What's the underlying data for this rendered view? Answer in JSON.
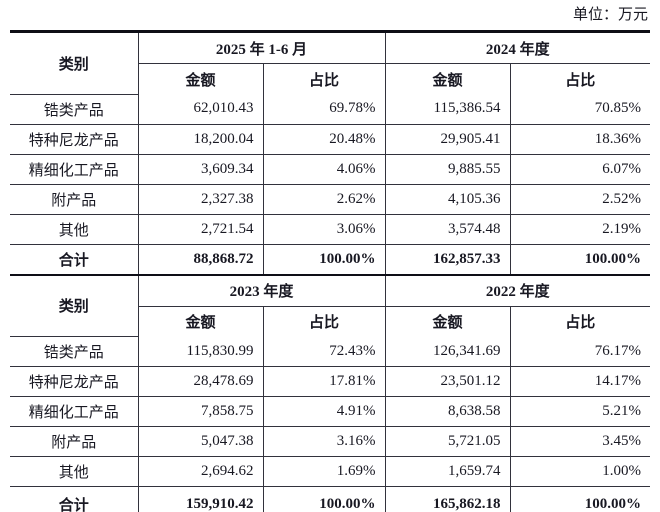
{
  "unit_label": "单位：万元",
  "colors": {
    "text": "#181822",
    "thick_border": "#0e0e16",
    "thin_border": "#32323c",
    "background": "#ffffff"
  },
  "tables": [
    {
      "col_header": "类别",
      "period_headers": [
        "2025 年 1-6 月",
        "2024 年度"
      ],
      "sub_headers": [
        "金额",
        "占比",
        "金额",
        "占比"
      ],
      "rows": [
        {
          "label": "锆类产品",
          "values": [
            "62,010.43",
            "69.78%",
            "115,386.54",
            "70.85%"
          ],
          "bold": false
        },
        {
          "label": "特种尼龙产品",
          "values": [
            "18,200.04",
            "20.48%",
            "29,905.41",
            "18.36%"
          ],
          "bold": false
        },
        {
          "label": "精细化工产品",
          "values": [
            "3,609.34",
            "4.06%",
            "9,885.55",
            "6.07%"
          ],
          "bold": false
        },
        {
          "label": "附产品",
          "values": [
            "2,327.38",
            "2.62%",
            "4,105.36",
            "2.52%"
          ],
          "bold": false
        },
        {
          "label": "其他",
          "values": [
            "2,721.54",
            "3.06%",
            "3,574.48",
            "2.19%"
          ],
          "bold": false
        },
        {
          "label": "合计",
          "values": [
            "88,868.72",
            "100.00%",
            "162,857.33",
            "100.00%"
          ],
          "bold": true
        }
      ]
    },
    {
      "col_header": "类别",
      "period_headers": [
        "2023 年度",
        "2022 年度"
      ],
      "sub_headers": [
        "金额",
        "占比",
        "金额",
        "占比"
      ],
      "rows": [
        {
          "label": "锆类产品",
          "values": [
            "115,830.99",
            "72.43%",
            "126,341.69",
            "76.17%"
          ],
          "bold": false
        },
        {
          "label": "特种尼龙产品",
          "values": [
            "28,478.69",
            "17.81%",
            "23,501.12",
            "14.17%"
          ],
          "bold": false
        },
        {
          "label": "精细化工产品",
          "values": [
            "7,858.75",
            "4.91%",
            "8,638.58",
            "5.21%"
          ],
          "bold": false
        },
        {
          "label": "附产品",
          "values": [
            "5,047.38",
            "3.16%",
            "5,721.05",
            "3.45%"
          ],
          "bold": false
        },
        {
          "label": "其他",
          "values": [
            "2,694.62",
            "1.69%",
            "1,659.74",
            "1.00%"
          ],
          "bold": false
        },
        {
          "label": "合计",
          "values": [
            "159,910.42",
            "100.00%",
            "165,862.18",
            "100.00%"
          ],
          "bold": true
        }
      ]
    }
  ]
}
